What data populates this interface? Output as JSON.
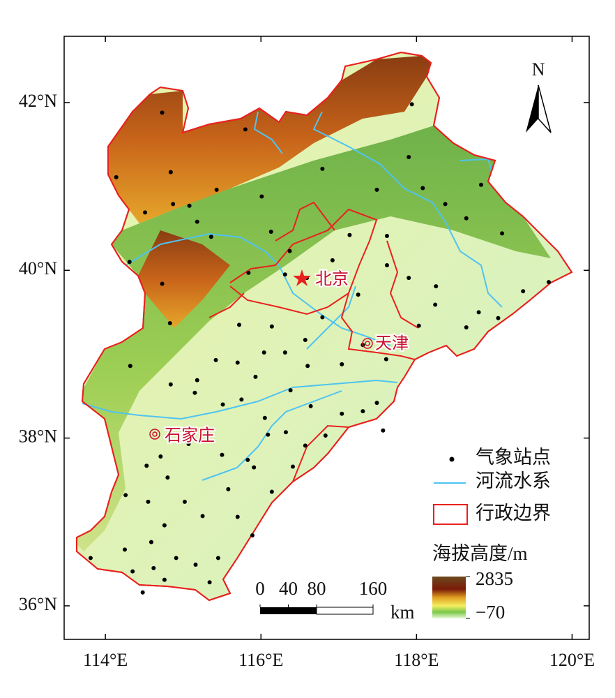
{
  "map": {
    "xlim": [
      113.47,
      120.22
    ],
    "ylim": [
      35.6,
      42.79
    ],
    "xticks": [
      {
        "value": 114,
        "label": "114°E"
      },
      {
        "value": 116,
        "label": "116°E"
      },
      {
        "value": 118,
        "label": "118°E"
      },
      {
        "value": 120,
        "label": "120°E"
      }
    ],
    "yticks": [
      {
        "value": 36,
        "label": "36°N"
      },
      {
        "value": 38,
        "label": "38°N"
      },
      {
        "value": 40,
        "label": "40°N"
      },
      {
        "value": 42,
        "label": "42°N"
      }
    ],
    "north": "N",
    "cities": [
      "北京",
      "天津",
      "石家庄"
    ],
    "legend": [
      "气象站点",
      "河流水系",
      "行政边界"
    ],
    "colorbar": {
      "title": "海拔高度/m",
      "ticks": [
        2835,
        {
          "value": -70,
          "label": "−70"
        }
      ]
    },
    "scale_bar": {
      "ticks": [
        0,
        40,
        80,
        160
      ],
      "unit": "km"
    },
    "stations": {
      "lon": [
        114.73,
        114.14,
        114.84,
        114.51,
        114.87,
        115.08,
        115.18,
        115.43,
        116.01,
        115.8,
        116.79,
        117.94,
        117.9,
        118.08,
        117.49,
        118.37,
        118.83,
        118.64,
        119.1,
        117.62,
        117.14,
        116.92,
        116.37,
        116.13,
        115.36,
        114.73,
        114.31,
        114.83,
        115.84,
        116.31,
        116.59,
        116.79,
        116.57,
        117.25,
        117.62,
        117.9,
        118.25,
        118.24,
        118.8,
        119.05,
        119.37,
        119.7,
        118.64,
        118.03,
        117.04,
        117.31,
        117.61,
        116.6,
        116.14,
        115.72,
        115.42,
        115.18,
        114.84,
        114.32,
        115.15,
        115.51,
        115.75,
        115.93,
        116.04,
        116.31,
        115.7,
        116.05,
        116.38,
        116.64,
        116.83,
        117.04,
        117.31,
        117.49,
        117.57,
        116.32,
        116.09,
        115.83,
        115.5,
        115.07,
        114.71,
        114.53,
        114.8,
        114.55,
        115.02,
        115.25,
        115.58,
        115.91,
        116.14,
        116.41,
        116.57,
        114.59,
        114.62,
        114.91,
        115.16,
        115.45,
        115.34,
        114.76,
        114.35,
        113.81,
        114.25,
        114.48,
        114.26,
        114.76,
        115.7,
        115.89
      ],
      "lat": [
        41.88,
        41.11,
        41.17,
        40.69,
        40.79,
        40.77,
        40.58,
        40.96,
        40.88,
        41.68,
        41.21,
        41.98,
        41.35,
        40.98,
        40.96,
        40.79,
        41.02,
        40.62,
        40.44,
        40.41,
        40.42,
        40.12,
        40.23,
        40.46,
        40.4,
        39.84,
        40.1,
        39.37,
        39.97,
        39.95,
        39.91,
        39.44,
        39.17,
        39.71,
        40.06,
        39.91,
        39.81,
        39.59,
        39.5,
        39.43,
        39.75,
        39.86,
        39.32,
        39.34,
        38.88,
        39.11,
        38.94,
        38.86,
        39.33,
        39.35,
        38.93,
        38.69,
        38.64,
        38.86,
        38.54,
        38.4,
        38.46,
        38.73,
        39.02,
        39.02,
        38.9,
        38.24,
        38.57,
        38.38,
        38.03,
        38.29,
        38.32,
        38.42,
        38.09,
        38.07,
        38.04,
        37.74,
        37.8,
        37.93,
        37.78,
        37.67,
        37.53,
        37.24,
        37.24,
        37.07,
        37.39,
        37.65,
        37.36,
        37.66,
        37.91,
        36.76,
        36.45,
        36.57,
        36.49,
        36.57,
        36.28,
        36.31,
        36.41,
        36.57,
        36.67,
        36.16,
        37.32,
        36.96,
        37.06,
        36.84
      ]
    }
  }
}
